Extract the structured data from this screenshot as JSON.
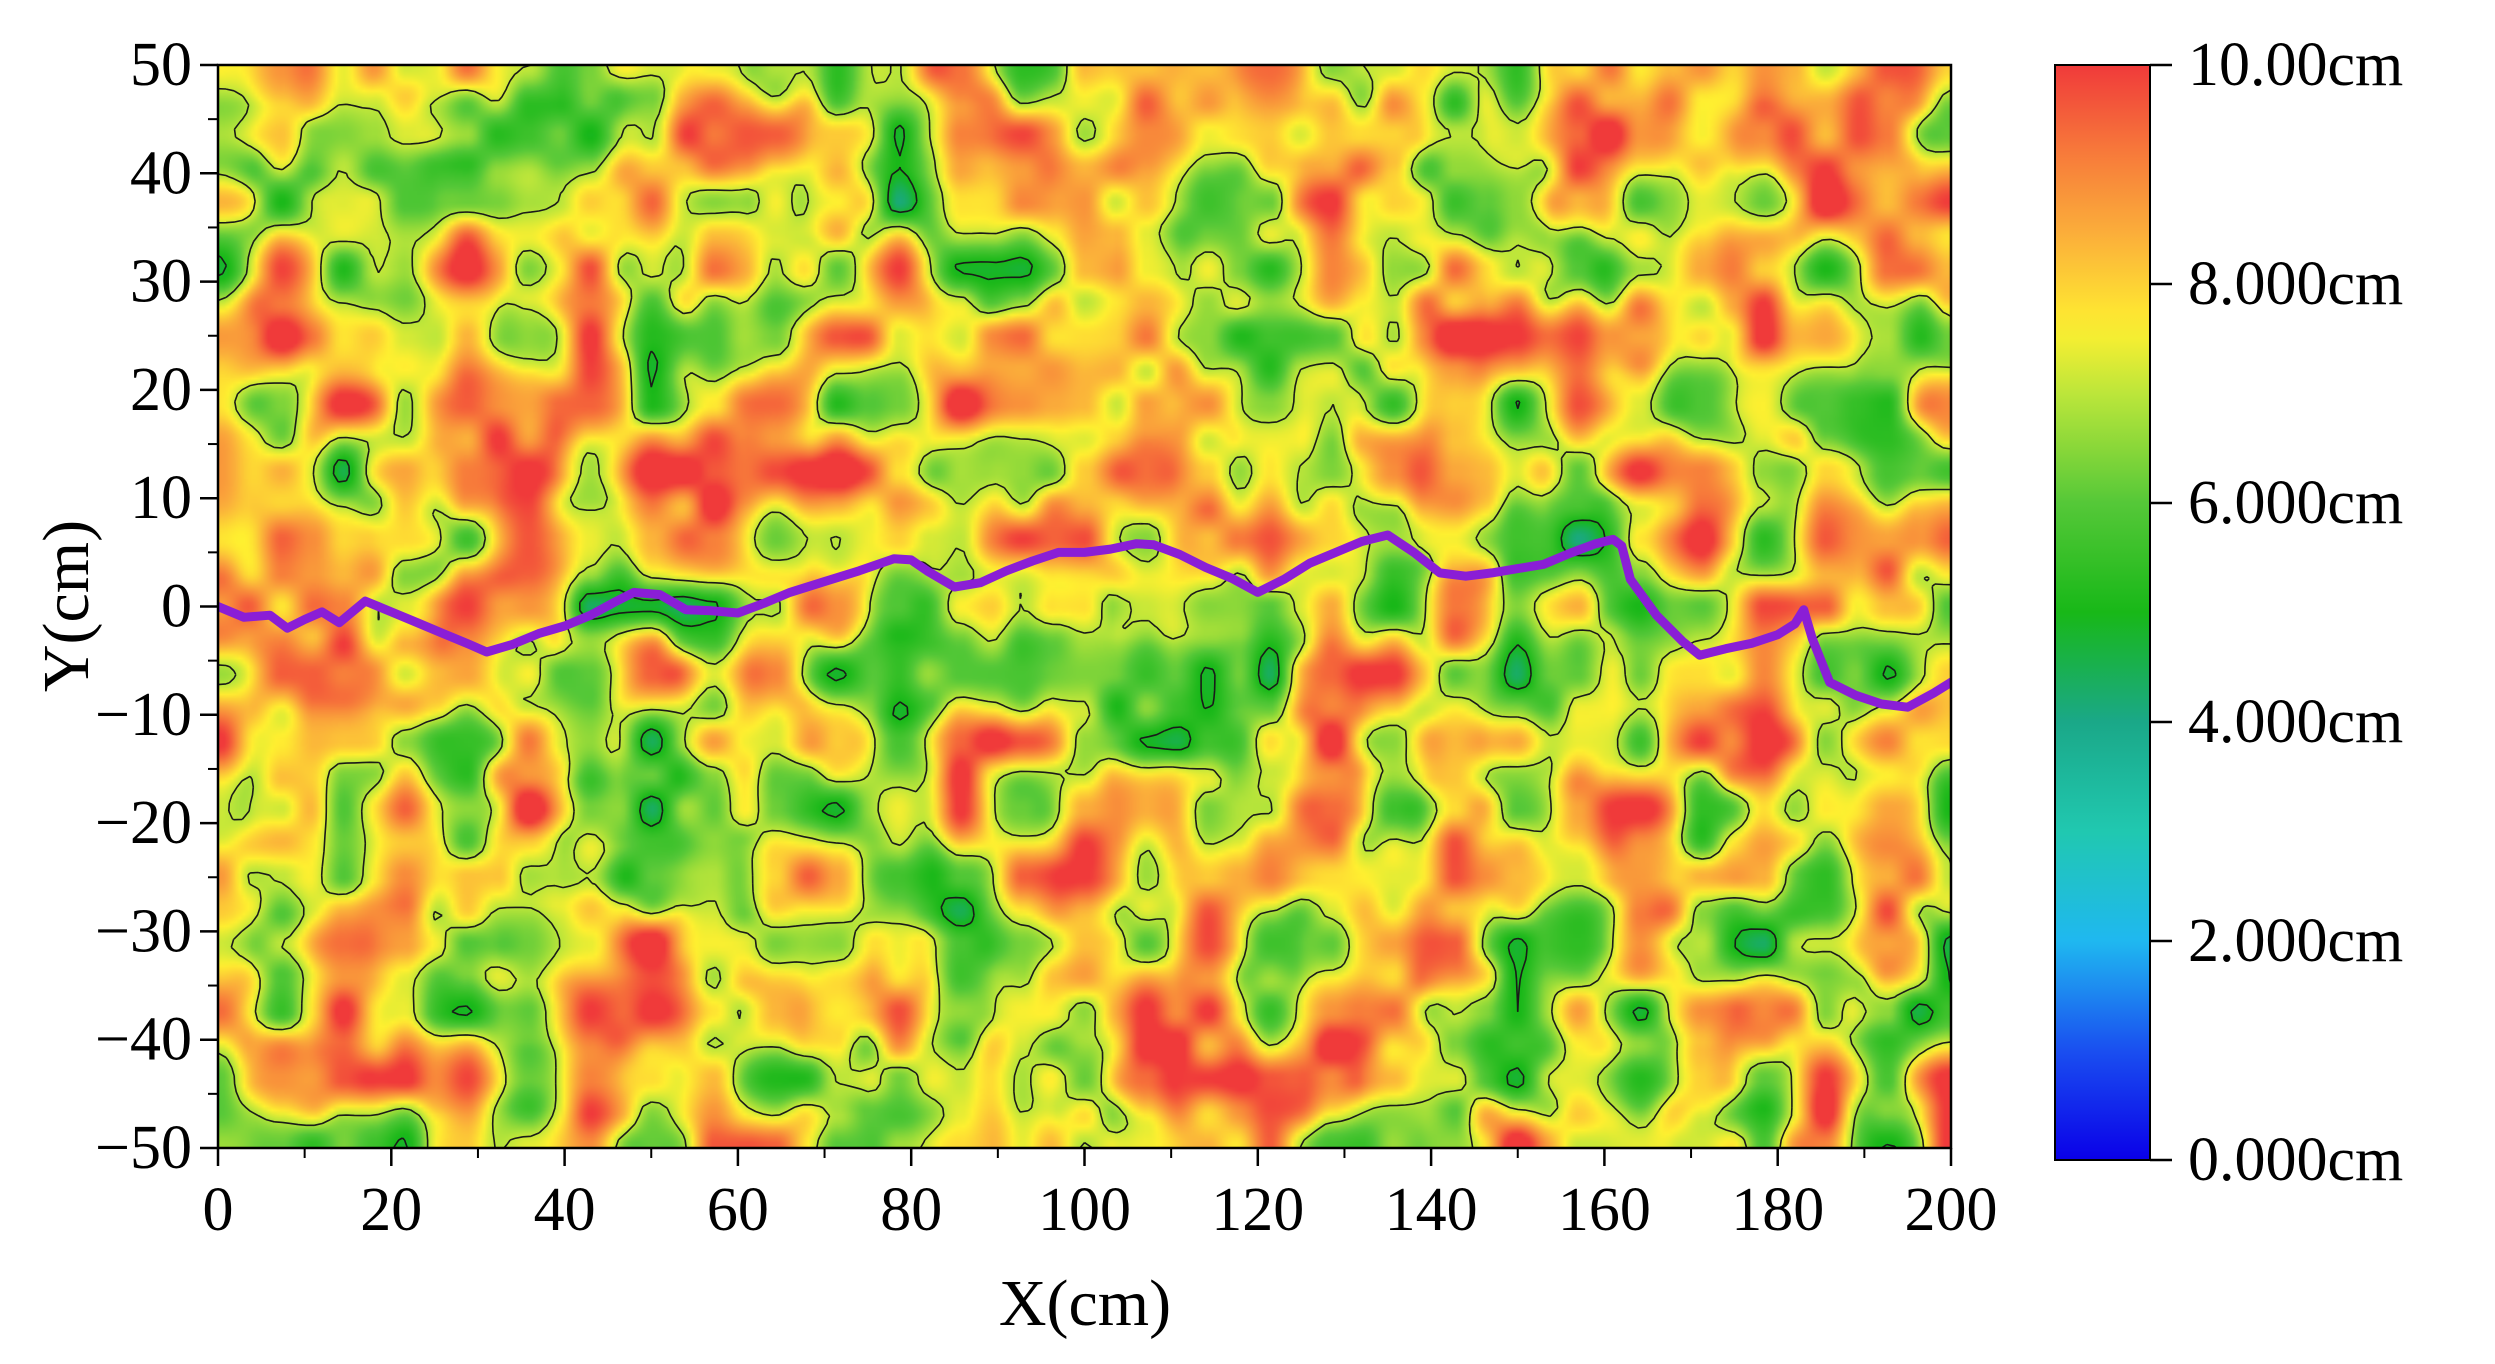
{
  "chart_data": {
    "type": "heatmap",
    "title": "",
    "xlabel": "X(cm)",
    "ylabel": "Y(cm)",
    "xlim": [
      0,
      200
    ],
    "ylim": [
      -50,
      50
    ],
    "x_ticks": [
      {
        "value": 0,
        "label": "0"
      },
      {
        "value": 20,
        "label": "20"
      },
      {
        "value": 40,
        "label": "40"
      },
      {
        "value": 60,
        "label": "60"
      },
      {
        "value": 80,
        "label": "80"
      },
      {
        "value": 100,
        "label": "100"
      },
      {
        "value": 120,
        "label": "120"
      },
      {
        "value": 140,
        "label": "140"
      },
      {
        "value": 160,
        "label": "160"
      },
      {
        "value": 180,
        "label": "180"
      },
      {
        "value": 200,
        "label": "200"
      }
    ],
    "y_ticks": [
      {
        "value": 50,
        "label": "50"
      },
      {
        "value": 40,
        "label": "40"
      },
      {
        "value": 30,
        "label": "30"
      },
      {
        "value": 20,
        "label": "20"
      },
      {
        "value": 10,
        "label": "10"
      },
      {
        "value": 0,
        "label": "0"
      },
      {
        "value": -10,
        "label": "−10"
      },
      {
        "value": -20,
        "label": "−20"
      },
      {
        "value": -30,
        "label": "−30"
      },
      {
        "value": -40,
        "label": "−40"
      },
      {
        "value": -50,
        "label": "−50"
      }
    ],
    "colorbar": {
      "range": [
        0,
        10
      ],
      "ticks": [
        {
          "value": 10,
          "label": "10.00cm"
        },
        {
          "value": 8,
          "label": "8.000cm"
        },
        {
          "value": 6,
          "label": "6.000cm"
        },
        {
          "value": 4,
          "label": "4.000cm"
        },
        {
          "value": 2,
          "label": "2.000cm"
        },
        {
          "value": 0,
          "label": "0.000cm"
        }
      ],
      "stops": [
        {
          "value": 0,
          "color": "#0a00e8"
        },
        {
          "value": 1,
          "color": "#1a4ff0"
        },
        {
          "value": 2,
          "color": "#1fb8f0"
        },
        {
          "value": 3,
          "color": "#20c8b0"
        },
        {
          "value": 4,
          "color": "#1aa888"
        },
        {
          "value": 5,
          "color": "#18b818"
        },
        {
          "value": 6,
          "color": "#55c838"
        },
        {
          "value": 7,
          "color": "#bce63a"
        },
        {
          "value": 7.6,
          "color": "#fff030"
        },
        {
          "value": 8.4,
          "color": "#fbb23a"
        },
        {
          "value": 9.2,
          "color": "#f77a3a"
        },
        {
          "value": 10,
          "color": "#f03a3a"
        }
      ]
    },
    "contour_levels": [
      3,
      5,
      7
    ],
    "path_color": "#8a1ed6",
    "path": [
      [
        0,
        0
      ],
      [
        3,
        -1
      ],
      [
        6,
        -0.8
      ],
      [
        8,
        -2
      ],
      [
        10,
        -1.2
      ],
      [
        12,
        -0.5
      ],
      [
        14,
        -1.5
      ],
      [
        17,
        0.5
      ],
      [
        20,
        -0.5
      ],
      [
        23,
        -1.5
      ],
      [
        26,
        -2.5
      ],
      [
        29,
        -3.5
      ],
      [
        31,
        -4.2
      ],
      [
        34,
        -3.5
      ],
      [
        37,
        -2.5
      ],
      [
        40,
        -1.8
      ],
      [
        43,
        -0.8
      ],
      [
        46,
        0.5
      ],
      [
        48,
        1.3
      ],
      [
        51,
        1.1
      ],
      [
        54,
        -0.3
      ],
      [
        57,
        -0.4
      ],
      [
        60,
        -0.6
      ],
      [
        63,
        0.3
      ],
      [
        66,
        1.3
      ],
      [
        70,
        2.3
      ],
      [
        74,
        3.3
      ],
      [
        78,
        4.4
      ],
      [
        80,
        4.3
      ],
      [
        82,
        3.2
      ],
      [
        85,
        1.8
      ],
      [
        88,
        2.2
      ],
      [
        91,
        3.3
      ],
      [
        94,
        4.2
      ],
      [
        97,
        5.0
      ],
      [
        100,
        5.0
      ],
      [
        103,
        5.3
      ],
      [
        106,
        5.8
      ],
      [
        108,
        5.7
      ],
      [
        111,
        4.8
      ],
      [
        114,
        3.6
      ],
      [
        117,
        2.6
      ],
      [
        120,
        1.3
      ],
      [
        123,
        2.5
      ],
      [
        126,
        4.0
      ],
      [
        129,
        5.0
      ],
      [
        132,
        6.0
      ],
      [
        135,
        6.6
      ],
      [
        138,
        5.0
      ],
      [
        141,
        3.1
      ],
      [
        144,
        2.8
      ],
      [
        147,
        3.1
      ],
      [
        150,
        3.5
      ],
      [
        153,
        3.9
      ],
      [
        156,
        4.9
      ],
      [
        159,
        5.8
      ],
      [
        161,
        6.2
      ],
      [
        162,
        5.6
      ],
      [
        163,
        2.5
      ],
      [
        166,
        -0.8
      ],
      [
        169,
        -3.2
      ],
      [
        171,
        -4.5
      ],
      [
        174,
        -3.9
      ],
      [
        177,
        -3.4
      ],
      [
        180,
        -2.6
      ],
      [
        182,
        -1.6
      ],
      [
        183,
        -0.3
      ],
      [
        184,
        -3.0
      ],
      [
        186,
        -7.0
      ],
      [
        189,
        -8.2
      ],
      [
        192,
        -9.0
      ],
      [
        195,
        -9.3
      ],
      [
        198,
        -8.0
      ],
      [
        200,
        -7.0
      ]
    ]
  }
}
